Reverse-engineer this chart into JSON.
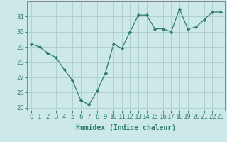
{
  "xlabel": "Humidex (Indice chaleur)",
  "x_values": [
    0,
    1,
    2,
    3,
    4,
    5,
    6,
    7,
    8,
    9,
    10,
    11,
    12,
    13,
    14,
    15,
    16,
    17,
    18,
    19,
    20,
    21,
    22,
    23
  ],
  "y_values": [
    29.2,
    29.0,
    28.6,
    28.3,
    27.5,
    26.8,
    25.5,
    25.2,
    26.1,
    27.3,
    29.2,
    28.9,
    30.0,
    31.1,
    31.1,
    30.2,
    30.2,
    30.0,
    31.5,
    30.2,
    30.3,
    30.8,
    31.3,
    31.3
  ],
  "line_color": "#2e7d6e",
  "marker": "D",
  "marker_size": 2.2,
  "bg_color": "#cce8e8",
  "grid_color": "#b0d0d0",
  "ylim": [
    24.8,
    32.0
  ],
  "yticks": [
    25,
    26,
    27,
    28,
    29,
    30,
    31
  ],
  "xlim": [
    -0.5,
    23.5
  ],
  "label_fontsize": 7,
  "tick_fontsize": 6.5
}
